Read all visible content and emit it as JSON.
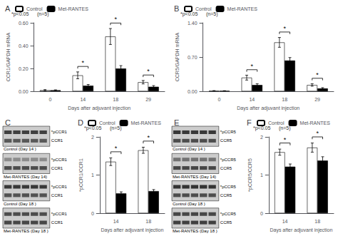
{
  "chart_data": [
    {
      "type": "bar",
      "title": "A",
      "xlabel": "Days after adjuvant injection",
      "ylabel": "CCR1/GAPDH mRNA",
      "categories": [
        "0",
        "14",
        "18",
        "29"
      ],
      "series": [
        {
          "name": "Control",
          "color": "white",
          "values": [
            0.01,
            0.14,
            0.48,
            0.08
          ],
          "errors": [
            0.005,
            0.03,
            0.07,
            0.015
          ]
        },
        {
          "name": "Met-RANTES",
          "color": "black",
          "values": [
            0.01,
            0.05,
            0.2,
            0.04
          ],
          "errors": [
            0.003,
            0.01,
            0.025,
            0.01
          ]
        }
      ],
      "ylim": [
        0,
        0.6
      ],
      "yticks": [
        {
          "value": 0,
          "label": "0.00"
        },
        {
          "value": 0.2,
          "label": "0.20"
        },
        {
          "value": 0.4,
          "label": "0.40"
        },
        {
          "value": 0.6,
          "label": "0.60"
        }
      ],
      "grid": false,
      "legend": "upper left",
      "annotations": [
        {
          "text": "*",
          "x": "14"
        },
        {
          "text": "*",
          "x": "18"
        },
        {
          "text": "*",
          "x": "29"
        },
        {
          "text": "*p<0.05"
        },
        {
          "text": "(n=5)"
        }
      ]
    },
    {
      "type": "bar",
      "title": "B",
      "xlabel": "Days after adjuvant injection",
      "ylabel": "CCR5/GAPDH mRNA",
      "categories": [
        "0",
        "14",
        "18",
        "29"
      ],
      "series": [
        {
          "name": "Control",
          "color": "white",
          "values": [
            0.01,
            0.28,
            1.0,
            0.13
          ],
          "errors": [
            0.005,
            0.05,
            0.1,
            0.025
          ]
        },
        {
          "name": "Met-RANTES",
          "color": "black",
          "values": [
            0.01,
            0.13,
            0.63,
            0.06
          ],
          "errors": [
            0.003,
            0.025,
            0.06,
            0.015
          ]
        }
      ],
      "ylim": [
        0,
        1.4
      ],
      "yticks": [
        {
          "value": 0,
          "label": "0.00"
        },
        {
          "value": 0.7,
          "label": "0.70"
        },
        {
          "value": 1.4,
          "label": "1.40"
        }
      ],
      "grid": false,
      "legend": "upper left",
      "annotations": [
        {
          "text": "*",
          "x": "14"
        },
        {
          "text": "*",
          "x": "18"
        },
        {
          "text": "*",
          "x": "29"
        },
        {
          "text": "*p<0.05"
        },
        {
          "text": "(n=5)"
        }
      ]
    },
    {
      "type": "blot",
      "title": "C",
      "categories": [
        "Control (Day 14 )",
        "Met-RANTES (Day 14)",
        "Control (Day 18 )",
        "Met-RANTES (Day 18 )"
      ],
      "series": [
        {
          "name": "*pCCR1",
          "values": [
            0.25,
            0.55,
            0.22,
            0.3
          ]
        },
        {
          "name": "CCR1",
          "values": [
            0.35,
            0.3,
            0.32,
            0.28
          ]
        }
      ],
      "tick_labels": false
    },
    {
      "type": "bar",
      "title": "D",
      "xlabel": "Days after adjuvant injection",
      "ylabel": "*pCCR1/CCR1",
      "categories": [
        "14",
        "18"
      ],
      "series": [
        {
          "name": "Control",
          "color": "white",
          "values": [
            1.35,
            1.65
          ],
          "errors": [
            0.1,
            0.08
          ]
        },
        {
          "name": "Met-RANTES",
          "color": "black",
          "values": [
            0.52,
            0.58
          ],
          "errors": [
            0.04,
            0.04
          ]
        }
      ],
      "ylim": [
        0,
        2.0
      ],
      "yticks": [
        0,
        1,
        2
      ],
      "grid": false,
      "legend": "upper left",
      "annotations": [
        {
          "text": "*",
          "x": "14"
        },
        {
          "text": "*",
          "x": "18"
        },
        {
          "text": "*p<0.05"
        },
        {
          "text": "(n=5)"
        }
      ]
    },
    {
      "type": "blot",
      "title": "E",
      "categories": [
        "Control (Day 14 )",
        "Met-RANTES (Day 14)",
        "Control (Day 18 )",
        "Met-RANTES (Day 18 )"
      ],
      "series": [
        {
          "name": "*pCCR5",
          "values": [
            0.22,
            0.45,
            0.2,
            0.28
          ]
        },
        {
          "name": "CCR5",
          "values": [
            0.3,
            0.28,
            0.3,
            0.25
          ]
        }
      ],
      "tick_labels": false
    },
    {
      "type": "bar",
      "title": "F",
      "xlabel": "Days after adjuvant injection",
      "ylabel": "*pCCR5/CCR5",
      "categories": [
        "14",
        "18"
      ],
      "series": [
        {
          "name": "Control",
          "color": "white",
          "values": [
            1.6,
            1.72
          ],
          "errors": [
            0.08,
            0.12
          ]
        },
        {
          "name": "Met-RANTES",
          "color": "black",
          "values": [
            1.22,
            1.38
          ],
          "errors": [
            0.07,
            0.1
          ]
        }
      ],
      "ylim": [
        0,
        2.0
      ],
      "yticks": [
        0,
        1,
        2
      ],
      "grid": false,
      "legend": "upper left",
      "annotations": [
        {
          "text": "*",
          "x": "14"
        },
        {
          "text": "*",
          "x": "18"
        },
        {
          "text": "*p<0.05"
        },
        {
          "text": "(n=5)"
        }
      ]
    }
  ]
}
